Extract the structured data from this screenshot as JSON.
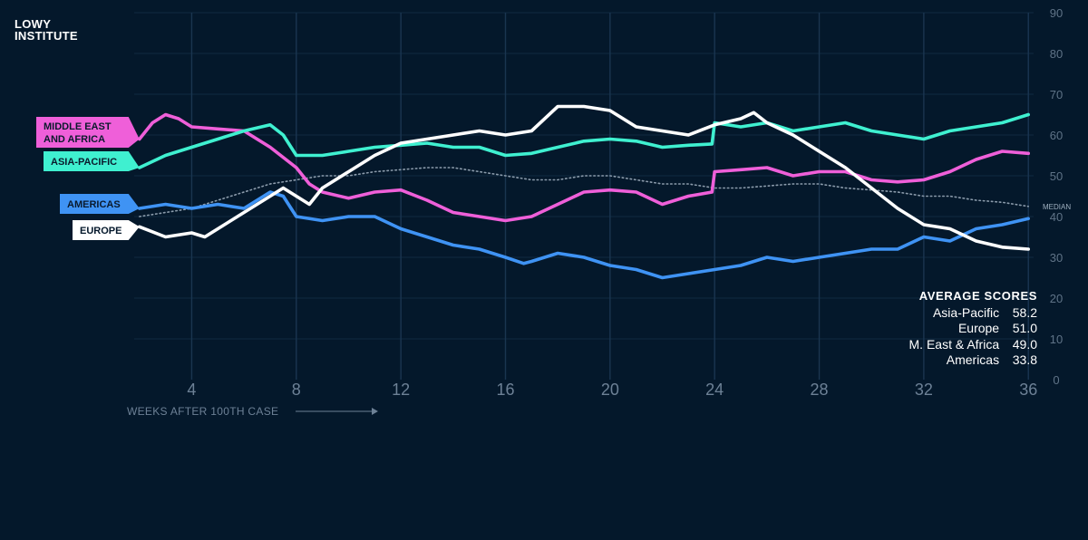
{
  "brand": {
    "line1": "LOWY",
    "line2": "INSTITUTE"
  },
  "colors": {
    "background": "#04182b",
    "asia_pacific": "#3ff0d0",
    "middle_east_africa": "#ef5fd9",
    "americas": "#3f93f4",
    "europe": "#ffffff",
    "median": "#8b9bab"
  },
  "average_scores": {
    "title": "AVERAGE SCORES",
    "rows": [
      {
        "label": "Asia-Pacific",
        "value": "58.2"
      },
      {
        "label": "Europe",
        "value": "51.0"
      },
      {
        "label": "M. East & Africa",
        "value": "49.0"
      },
      {
        "label": "Americas",
        "value": "33.8"
      }
    ]
  },
  "chart_data": {
    "type": "line",
    "xlabel": "WEEKS AFTER 100TH CASE",
    "ylabel": "",
    "xlim": [
      1.8,
      36.2
    ],
    "ylim": [
      0,
      90
    ],
    "x_ticks": [
      4,
      8,
      12,
      16,
      20,
      24,
      28,
      32,
      36
    ],
    "y_ticks": [
      0,
      10,
      20,
      30,
      40,
      50,
      60,
      70,
      80,
      90
    ],
    "grid": true,
    "legend": "left, labels at series start",
    "annotations": [
      "MEDIAN"
    ],
    "series": [
      {
        "name": "ASIA-PACIFIC",
        "color": "#3ff0d0",
        "points": [
          [
            2,
            52
          ],
          [
            3,
            55
          ],
          [
            4,
            57
          ],
          [
            5,
            59
          ],
          [
            6,
            61
          ],
          [
            7,
            62.5
          ],
          [
            7.5,
            60
          ],
          [
            8,
            55
          ],
          [
            9,
            55
          ],
          [
            10,
            56
          ],
          [
            11,
            57
          ],
          [
            12,
            57.5
          ],
          [
            13,
            58
          ],
          [
            14,
            57
          ],
          [
            15,
            57
          ],
          [
            16,
            55
          ],
          [
            17,
            55.5
          ],
          [
            18,
            57
          ],
          [
            19,
            58.5
          ],
          [
            20,
            59
          ],
          [
            21,
            58.5
          ],
          [
            22,
            57
          ],
          [
            23,
            57.5
          ],
          [
            23.9,
            57.8
          ],
          [
            24,
            63
          ],
          [
            25,
            62
          ],
          [
            26,
            63
          ],
          [
            27,
            61
          ],
          [
            28,
            62
          ],
          [
            29,
            63
          ],
          [
            30,
            61
          ],
          [
            31,
            60
          ],
          [
            32,
            59
          ],
          [
            33,
            61
          ],
          [
            34,
            62
          ],
          [
            35,
            63
          ],
          [
            36,
            65
          ]
        ]
      },
      {
        "name": "MIDDLE EAST AND AFRICA",
        "color": "#ef5fd9",
        "points": [
          [
            2,
            59
          ],
          [
            2.5,
            63
          ],
          [
            3,
            65
          ],
          [
            3.5,
            64
          ],
          [
            4,
            62
          ],
          [
            5,
            61.5
          ],
          [
            6,
            61
          ],
          [
            7,
            57
          ],
          [
            8,
            52
          ],
          [
            8.5,
            48
          ],
          [
            9,
            46
          ],
          [
            10,
            44.5
          ],
          [
            11,
            46
          ],
          [
            12,
            46.5
          ],
          [
            13,
            44
          ],
          [
            14,
            41
          ],
          [
            15,
            40
          ],
          [
            16,
            39
          ],
          [
            17,
            40
          ],
          [
            18,
            43
          ],
          [
            19,
            46
          ],
          [
            20,
            46.5
          ],
          [
            21,
            46
          ],
          [
            22,
            43
          ],
          [
            23,
            45
          ],
          [
            23.9,
            46
          ],
          [
            24,
            51
          ],
          [
            25,
            51.5
          ],
          [
            26,
            52
          ],
          [
            27,
            50
          ],
          [
            28,
            51
          ],
          [
            29,
            51
          ],
          [
            30,
            49
          ],
          [
            31,
            48.5
          ],
          [
            32,
            49
          ],
          [
            33,
            51
          ],
          [
            34,
            54
          ],
          [
            35,
            56
          ],
          [
            36,
            55.5
          ]
        ]
      },
      {
        "name": "AMERICAS",
        "color": "#3f93f4",
        "points": [
          [
            2,
            42
          ],
          [
            3,
            43
          ],
          [
            4,
            42
          ],
          [
            5,
            43
          ],
          [
            6,
            42
          ],
          [
            7,
            46
          ],
          [
            7.5,
            45
          ],
          [
            8,
            40
          ],
          [
            9,
            39
          ],
          [
            10,
            40
          ],
          [
            11,
            40
          ],
          [
            12,
            37
          ],
          [
            13,
            35
          ],
          [
            14,
            33
          ],
          [
            15,
            32
          ],
          [
            16,
            30
          ],
          [
            16.7,
            28.5
          ],
          [
            17,
            29
          ],
          [
            18,
            31
          ],
          [
            19,
            30
          ],
          [
            20,
            28
          ],
          [
            21,
            27
          ],
          [
            22,
            25
          ],
          [
            23,
            26
          ],
          [
            24,
            27
          ],
          [
            25,
            28
          ],
          [
            26,
            30
          ],
          [
            27,
            29
          ],
          [
            28,
            30
          ],
          [
            29,
            31
          ],
          [
            30,
            32
          ],
          [
            31,
            32
          ],
          [
            32,
            35
          ],
          [
            33,
            34
          ],
          [
            34,
            37
          ],
          [
            35,
            38
          ],
          [
            36,
            39.5
          ]
        ]
      },
      {
        "name": "EUROPE",
        "color": "#ffffff",
        "points": [
          [
            2,
            37.5
          ],
          [
            3,
            35
          ],
          [
            4,
            36
          ],
          [
            4.5,
            35
          ],
          [
            5,
            37
          ],
          [
            6,
            41
          ],
          [
            7,
            45
          ],
          [
            7.5,
            47
          ],
          [
            8,
            45
          ],
          [
            8.5,
            43
          ],
          [
            9,
            47
          ],
          [
            10,
            51
          ],
          [
            11,
            55
          ],
          [
            12,
            58
          ],
          [
            13,
            59
          ],
          [
            14,
            60
          ],
          [
            15,
            61
          ],
          [
            16,
            60
          ],
          [
            17,
            61
          ],
          [
            18,
            67
          ],
          [
            19,
            67
          ],
          [
            20,
            66
          ],
          [
            21,
            62
          ],
          [
            22,
            61
          ],
          [
            23,
            60
          ],
          [
            24,
            62.5
          ],
          [
            25,
            64
          ],
          [
            25.5,
            65.5
          ],
          [
            26,
            63
          ],
          [
            27,
            60
          ],
          [
            28,
            56
          ],
          [
            29,
            52
          ],
          [
            30,
            47
          ],
          [
            31,
            42
          ],
          [
            32,
            38
          ],
          [
            33,
            37
          ],
          [
            34,
            34
          ],
          [
            35,
            32.5
          ],
          [
            36,
            32
          ]
        ]
      },
      {
        "name": "MEDIAN",
        "color": "#8b9bab",
        "points": [
          [
            2,
            40
          ],
          [
            3,
            41
          ],
          [
            4,
            42
          ],
          [
            5,
            44
          ],
          [
            6,
            46
          ],
          [
            7,
            48
          ],
          [
            8,
            49
          ],
          [
            9,
            50
          ],
          [
            10,
            50
          ],
          [
            11,
            51
          ],
          [
            12,
            51.5
          ],
          [
            13,
            52
          ],
          [
            14,
            52
          ],
          [
            15,
            51
          ],
          [
            16,
            50
          ],
          [
            17,
            49
          ],
          [
            18,
            49
          ],
          [
            19,
            50
          ],
          [
            20,
            50
          ],
          [
            21,
            49
          ],
          [
            22,
            48
          ],
          [
            23,
            48
          ],
          [
            24,
            47
          ],
          [
            25,
            47
          ],
          [
            26,
            47.5
          ],
          [
            27,
            48
          ],
          [
            28,
            48
          ],
          [
            29,
            47
          ],
          [
            30,
            46.5
          ],
          [
            31,
            46
          ],
          [
            32,
            45
          ],
          [
            33,
            45
          ],
          [
            34,
            44
          ],
          [
            35,
            43.5
          ],
          [
            36,
            42.5
          ]
        ]
      }
    ],
    "series_labels": [
      {
        "series": "MIDDLE EAST AND AFRICA",
        "lines": [
          "MIDDLE EAST",
          "AND AFRICA"
        ]
      },
      {
        "series": "ASIA-PACIFIC",
        "lines": [
          "ASIA-PACIFIC"
        ]
      },
      {
        "series": "AMERICAS",
        "lines": [
          "AMERICAS"
        ]
      },
      {
        "series": "EUROPE",
        "lines": [
          "EUROPE"
        ]
      }
    ]
  }
}
